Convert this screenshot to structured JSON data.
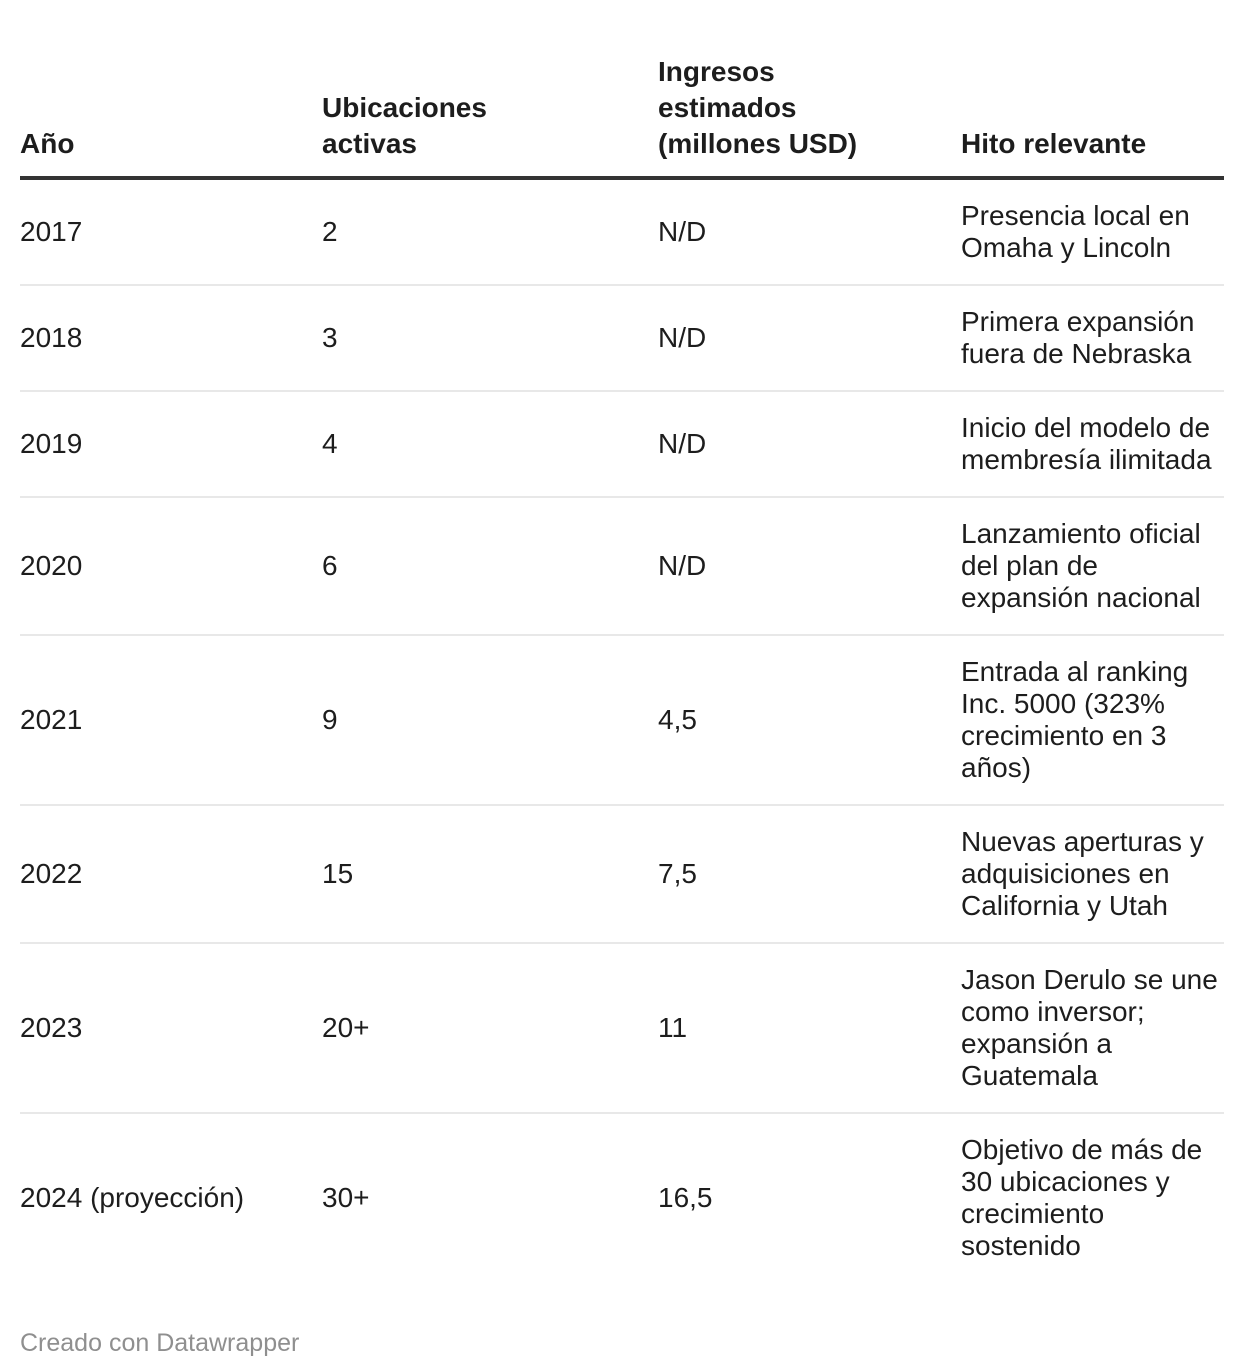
{
  "chart_data": {
    "type": "table",
    "columns": [
      "Año",
      "Ubicaciones activas",
      "Ingresos estimados (millones USD)",
      "Hito relevante"
    ],
    "columns_display": [
      "Año",
      "Ubicaciones\nactivas",
      "Ingresos\nestimados\n(millones USD)",
      "Hito relevante"
    ],
    "rows": [
      {
        "year": "2017",
        "locations": "2",
        "revenue": "N/D",
        "milestone": "Presencia local en Omaha y Lincoln"
      },
      {
        "year": "2018",
        "locations": "3",
        "revenue": "N/D",
        "milestone": "Primera expansión fuera de Nebraska"
      },
      {
        "year": "2019",
        "locations": "4",
        "revenue": "N/D",
        "milestone": "Inicio del modelo de membresía ilimitada"
      },
      {
        "year": "2020",
        "locations": "6",
        "revenue": "N/D",
        "milestone": "Lanzamiento oficial del plan de expansión nacional"
      },
      {
        "year": "2021",
        "locations": "9",
        "revenue": "4,5",
        "milestone": "Entrada al ranking Inc. 5000 (323% crecimiento en 3 años)"
      },
      {
        "year": "2022",
        "locations": "15",
        "revenue": "7,5",
        "milestone": "Nuevas aperturas y adquisiciones en California y Utah"
      },
      {
        "year": "2023",
        "locations": "20+",
        "revenue": "11",
        "milestone": "Jason Derulo se une como inversor; expansión a Guatemala"
      },
      {
        "year": "2024 (proyección)",
        "locations": "30+",
        "revenue": "16,5",
        "milestone": "Objetivo de más de 30 ubicaciones y crecimiento sostenido"
      }
    ]
  },
  "footer": {
    "credit": "Creado con Datawrapper"
  },
  "colors": {
    "background": "#ffffff",
    "text": "#1d1d1d",
    "header_rule": "#333333",
    "row_divider": "#e8e8e8",
    "credit_text": "#8f8f8f"
  }
}
